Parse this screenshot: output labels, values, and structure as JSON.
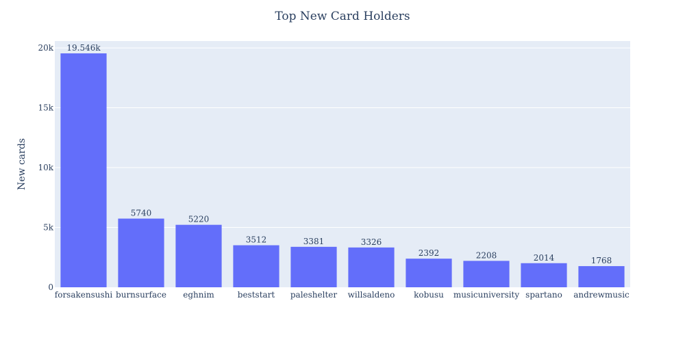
{
  "chart_data": {
    "type": "bar",
    "title": "Top New Card Holders",
    "xlabel": "",
    "ylabel": "New cards",
    "categories": [
      "forsakensushi",
      "burnsurface",
      "eghnim",
      "beststart",
      "paleshelter",
      "willsaldeno",
      "kobusu",
      "musicuniversity",
      "spartano",
      "andrewmusic"
    ],
    "values": [
      19546,
      5740,
      5220,
      3512,
      3381,
      3326,
      2392,
      2208,
      2014,
      1768
    ],
    "data_labels": [
      "19.546k",
      "5740",
      "5220",
      "3512",
      "3381",
      "3326",
      "2392",
      "2208",
      "2014",
      "1768"
    ],
    "ylim": [
      0,
      20576
    ],
    "y_ticks": [
      0,
      5000,
      10000,
      15000,
      20000
    ],
    "y_tick_labels": [
      "0",
      "5k",
      "10k",
      "15k",
      "20k"
    ],
    "grid": true,
    "colors": {
      "bar": "#636efa",
      "plot_bg": "#e5ecf6",
      "grid": "#ffffff",
      "text": "#2a3f5f"
    }
  }
}
